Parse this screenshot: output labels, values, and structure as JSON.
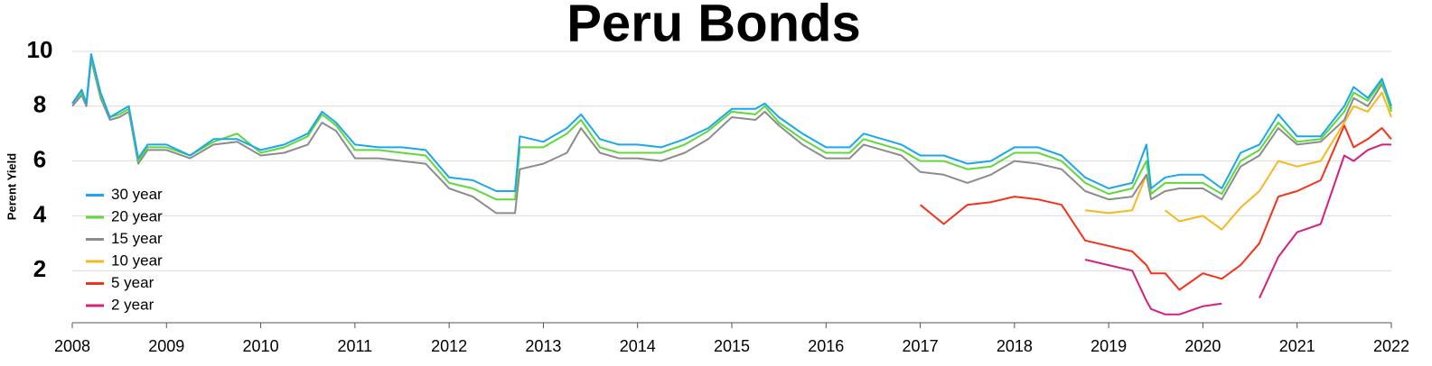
{
  "chart_data": {
    "type": "line",
    "title": "Peru Bonds",
    "y_label": "Perent Yield",
    "x": [
      2008.0,
      2008.1,
      2008.15,
      2008.2,
      2008.3,
      2008.4,
      2008.5,
      2008.6,
      2008.7,
      2008.8,
      2009.0,
      2009.25,
      2009.5,
      2009.75,
      2010.0,
      2010.25,
      2010.5,
      2010.65,
      2010.8,
      2011.0,
      2011.25,
      2011.5,
      2011.75,
      2012.0,
      2012.25,
      2012.5,
      2012.7,
      2012.75,
      2013.0,
      2013.25,
      2013.4,
      2013.6,
      2013.8,
      2014.0,
      2014.25,
      2014.5,
      2014.75,
      2015.0,
      2015.25,
      2015.35,
      2015.5,
      2015.75,
      2016.0,
      2016.25,
      2016.4,
      2016.6,
      2016.8,
      2017.0,
      2017.25,
      2017.5,
      2017.75,
      2018.0,
      2018.25,
      2018.5,
      2018.75,
      2019.0,
      2019.25,
      2019.4,
      2019.45,
      2019.6,
      2019.75,
      2020.0,
      2020.2,
      2020.4,
      2020.6,
      2020.8,
      2021.0,
      2021.25,
      2021.5,
      2021.6,
      2021.75,
      2021.9,
      2022.0
    ],
    "series": [
      {
        "name": "30 year",
        "color": "#1aa7ec",
        "values": [
          8.1,
          8.6,
          8.1,
          9.9,
          8.5,
          7.6,
          7.8,
          8.0,
          6.1,
          6.6,
          6.6,
          6.2,
          6.8,
          6.8,
          6.4,
          6.6,
          7.0,
          7.8,
          7.4,
          6.6,
          6.5,
          6.5,
          6.4,
          5.4,
          5.3,
          4.9,
          4.9,
          6.9,
          6.7,
          7.2,
          7.7,
          6.8,
          6.6,
          6.6,
          6.5,
          6.8,
          7.2,
          7.9,
          7.9,
          8.1,
          7.6,
          7.0,
          6.5,
          6.5,
          7.0,
          6.8,
          6.6,
          6.2,
          6.2,
          5.9,
          6.0,
          6.5,
          6.5,
          6.2,
          5.4,
          5.0,
          5.2,
          6.6,
          5.0,
          5.4,
          5.5,
          5.5,
          5.0,
          6.3,
          6.6,
          7.7,
          6.9,
          6.9,
          8.0,
          8.7,
          8.3,
          9.0,
          8.0
        ]
      },
      {
        "name": "20 year",
        "color": "#5fd83a",
        "values": [
          8.1,
          8.5,
          8.1,
          9.8,
          8.4,
          7.6,
          7.7,
          7.9,
          6.0,
          6.5,
          6.5,
          6.2,
          6.7,
          7.0,
          6.3,
          6.5,
          6.9,
          7.7,
          7.3,
          6.4,
          6.4,
          6.3,
          6.2,
          5.2,
          5.0,
          4.6,
          4.6,
          6.5,
          6.5,
          7.0,
          7.5,
          6.5,
          6.3,
          6.3,
          6.3,
          6.6,
          7.1,
          7.8,
          7.7,
          8.0,
          7.4,
          6.8,
          6.3,
          6.3,
          6.8,
          6.6,
          6.4,
          6.0,
          6.0,
          5.7,
          5.8,
          6.3,
          6.3,
          6.0,
          5.2,
          4.8,
          5.0,
          6.0,
          4.8,
          5.2,
          5.2,
          5.2,
          4.8,
          6.0,
          6.4,
          7.4,
          6.7,
          6.8,
          7.8,
          8.5,
          8.2,
          8.9,
          7.8
        ]
      },
      {
        "name": "15 year",
        "color": "#8c8c8c",
        "values": [
          8.0,
          8.4,
          8.0,
          9.7,
          8.3,
          7.5,
          7.6,
          7.8,
          5.9,
          6.4,
          6.4,
          6.1,
          6.6,
          6.7,
          6.2,
          6.3,
          6.6,
          7.4,
          7.1,
          6.1,
          6.1,
          6.0,
          5.9,
          5.0,
          4.7,
          4.1,
          4.1,
          5.7,
          5.9,
          6.3,
          7.2,
          6.3,
          6.1,
          6.1,
          6.0,
          6.3,
          6.8,
          7.6,
          7.5,
          7.8,
          7.3,
          6.6,
          6.1,
          6.1,
          6.6,
          6.4,
          6.2,
          5.6,
          5.5,
          5.2,
          5.5,
          6.0,
          5.9,
          5.7,
          4.9,
          4.6,
          4.7,
          5.5,
          4.6,
          4.9,
          5.0,
          5.0,
          4.6,
          5.8,
          6.2,
          7.2,
          6.6,
          6.7,
          7.5,
          8.3,
          8.0,
          8.8,
          7.9
        ]
      },
      {
        "name": "10 year",
        "color": "#f7b81e",
        "values": [
          null,
          null,
          null,
          null,
          null,
          null,
          null,
          null,
          null,
          null,
          null,
          null,
          null,
          null,
          null,
          null,
          null,
          null,
          null,
          null,
          null,
          null,
          null,
          null,
          null,
          null,
          null,
          null,
          null,
          null,
          null,
          null,
          null,
          null,
          null,
          null,
          null,
          null,
          null,
          null,
          null,
          null,
          null,
          null,
          null,
          null,
          null,
          null,
          null,
          null,
          null,
          null,
          null,
          null,
          4.2,
          4.1,
          4.2,
          5.5,
          null,
          4.2,
          3.8,
          4.0,
          3.5,
          4.3,
          4.9,
          6.0,
          5.8,
          6.0,
          7.4,
          8.0,
          7.8,
          8.5,
          7.6
        ]
      },
      {
        "name": "5 year",
        "color": "#f5311b",
        "values": [
          null,
          null,
          null,
          null,
          null,
          null,
          null,
          null,
          null,
          null,
          null,
          null,
          null,
          null,
          null,
          null,
          null,
          null,
          null,
          null,
          null,
          null,
          null,
          null,
          null,
          null,
          null,
          null,
          null,
          null,
          null,
          null,
          null,
          null,
          null,
          null,
          null,
          null,
          null,
          null,
          null,
          null,
          null,
          null,
          null,
          null,
          null,
          4.4,
          3.7,
          4.4,
          4.5,
          4.7,
          4.6,
          4.4,
          3.1,
          2.9,
          2.7,
          2.2,
          1.9,
          1.9,
          1.3,
          1.9,
          1.7,
          2.2,
          3.0,
          4.7,
          4.9,
          5.3,
          7.3,
          6.5,
          6.8,
          7.2,
          6.8
        ]
      },
      {
        "name": "2 year",
        "color": "#d4207f",
        "values": [
          null,
          null,
          null,
          null,
          null,
          null,
          null,
          null,
          null,
          null,
          null,
          null,
          null,
          null,
          null,
          null,
          null,
          null,
          null,
          null,
          null,
          null,
          null,
          null,
          null,
          null,
          null,
          null,
          null,
          null,
          null,
          null,
          null,
          null,
          null,
          null,
          null,
          null,
          null,
          null,
          null,
          null,
          null,
          null,
          null,
          null,
          null,
          null,
          null,
          null,
          null,
          null,
          null,
          null,
          2.4,
          2.2,
          2.0,
          0.9,
          0.6,
          0.4,
          0.4,
          0.7,
          0.8,
          null,
          1.0,
          2.5,
          3.4,
          3.7,
          6.2,
          6.0,
          6.4,
          6.6,
          6.6
        ]
      }
    ],
    "xlim": [
      2008,
      2022
    ],
    "xticks": [
      2008,
      2009,
      2010,
      2011,
      2012,
      2013,
      2014,
      2015,
      2016,
      2017,
      2018,
      2019,
      2020,
      2021,
      2022
    ],
    "ylim": [
      0,
      10
    ],
    "yticks": [
      2,
      4,
      6,
      8,
      10
    ],
    "grid": true,
    "legend": "lower left"
  }
}
